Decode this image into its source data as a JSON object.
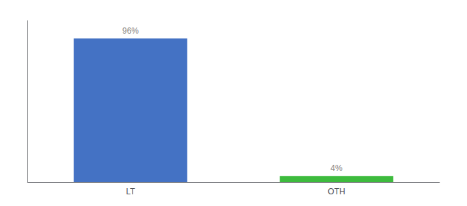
{
  "chart_data": {
    "type": "bar",
    "categories": [
      "LT",
      "OTH"
    ],
    "values": [
      96,
      4
    ],
    "value_labels": [
      "96%",
      "4%"
    ],
    "colors": [
      "#4472c4",
      "#3dbb3d"
    ],
    "ylim": [
      0,
      108
    ],
    "data_labels": true,
    "tick_labels": "x",
    "grid": false
  }
}
